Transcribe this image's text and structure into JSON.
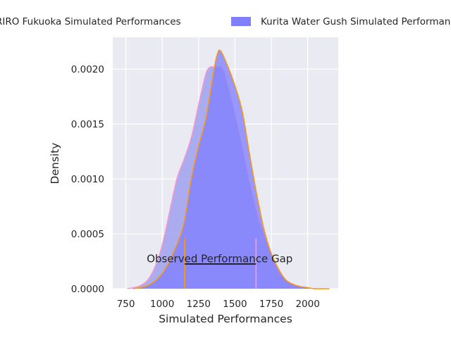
{
  "chart_data": {
    "type": "area",
    "title": "",
    "xlabel": "Simulated Performances",
    "ylabel": "Density",
    "xlim": [
      660,
      2210
    ],
    "ylim": [
      0,
      0.00229
    ],
    "x_ticks": [
      750,
      1000,
      1250,
      1500,
      1750,
      2000
    ],
    "y_ticks": [
      0,
      0.0005,
      0.001,
      0.0015,
      0.002
    ],
    "x_tick_labels": [
      "750",
      "1000",
      "1250",
      "1500",
      "1750",
      "2000"
    ],
    "y_tick_labels": [
      "0.0000",
      "0.0005",
      "0.0010",
      "0.0015",
      "0.0020"
    ],
    "grid": true,
    "legend_position": "top",
    "series": [
      {
        "name": "RIRO Fukuoka Simulated Performances",
        "fill": "#9999ee",
        "line": "#ff99cc",
        "x": [
          760,
          800,
          850,
          900,
          950,
          1000,
          1050,
          1100,
          1150,
          1200,
          1250,
          1300,
          1330,
          1350,
          1400,
          1420,
          1450,
          1500,
          1550,
          1600,
          1650,
          1700,
          1750,
          1800,
          1850,
          1900,
          1950,
          2000,
          2050,
          2110
        ],
        "y": [
          0.0,
          1e-05,
          3e-05,
          8e-05,
          0.0002,
          0.0004,
          0.0007,
          0.001,
          0.00118,
          0.00138,
          0.00168,
          0.00196,
          0.00202,
          0.00202,
          0.00202,
          0.00199,
          0.00185,
          0.00158,
          0.00128,
          0.00096,
          0.00068,
          0.00048,
          0.0003,
          0.00015,
          8e-05,
          4e-05,
          2e-05,
          1e-05,
          0.0,
          0.0
        ]
      },
      {
        "name": "Kurita Water Gush Simulated Performances",
        "fill": "#7f7fff",
        "line": "#ff9900",
        "x": [
          800,
          850,
          900,
          950,
          1000,
          1050,
          1100,
          1150,
          1200,
          1250,
          1300,
          1350,
          1375,
          1400,
          1450,
          1500,
          1550,
          1600,
          1650,
          1700,
          1750,
          1800,
          1850,
          1900,
          1950,
          2000,
          2050,
          2100,
          2150
        ],
        "y": [
          0.0,
          1e-05,
          3e-05,
          7e-05,
          0.00014,
          0.00025,
          0.0004,
          0.0006,
          0.001,
          0.0013,
          0.00155,
          0.00195,
          0.00212,
          0.00217,
          0.00203,
          0.00185,
          0.00162,
          0.00123,
          0.00086,
          0.00054,
          0.00032,
          0.00018,
          8e-05,
          4e-05,
          2e-05,
          1e-05,
          0.0,
          0.0,
          0.0
        ]
      }
    ],
    "annotations": [
      {
        "text": "Observed Performance Gap",
        "x": 1395,
        "y": 0.00024
      }
    ],
    "gap_marker": {
      "x_start": 1155,
      "x_end": 1645,
      "y": 0.000225,
      "tick_height": 0.00046,
      "start_color": "#ff9900",
      "end_color": "#ff99cc",
      "line_color": "#000000"
    }
  }
}
